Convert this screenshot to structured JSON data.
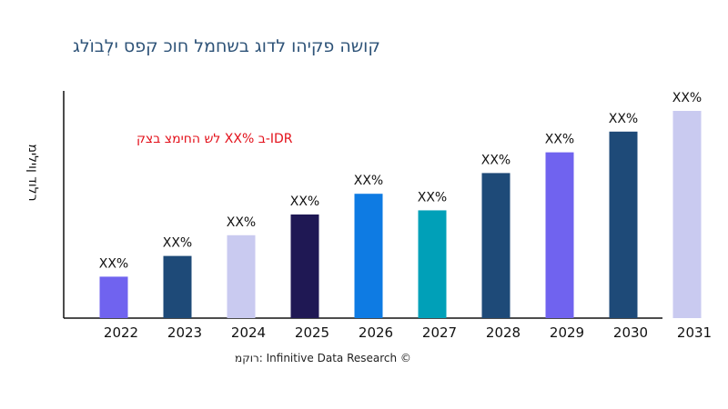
{
  "chart_data": {
    "type": "bar",
    "title": "קושה פקיהו לדוג בשחמל חוכ קפס ילְבוֹלג",
    "ylabel": "רלוד ןוילימ",
    "xlabel": "",
    "annotation": "לש החימצ בצק XX% ב-IDR",
    "source": "רוקמ: Infinitive Data Research ©",
    "categories": [
      "2022",
      "2023",
      "2024",
      "2025",
      "2026",
      "2027",
      "2028",
      "2029",
      "2030",
      "2031"
    ],
    "values": [
      20,
      30,
      40,
      50,
      60,
      52,
      70,
      80,
      90,
      100
    ],
    "data_labels": [
      "XX%",
      "XX%",
      "XX%",
      "XX%",
      "XX%",
      "XX%",
      "XX%",
      "XX%",
      "XX%",
      "XX%"
    ],
    "colors": [
      "#7063ef",
      "#1e4a78",
      "#c9caf0",
      "#1f1854",
      "#0e7be3",
      "#00a0b8",
      "#1e4a78",
      "#7063ef",
      "#1e4a78",
      "#c9caf0"
    ],
    "ylim": [
      0,
      100
    ],
    "grid": false,
    "legend": "none"
  }
}
